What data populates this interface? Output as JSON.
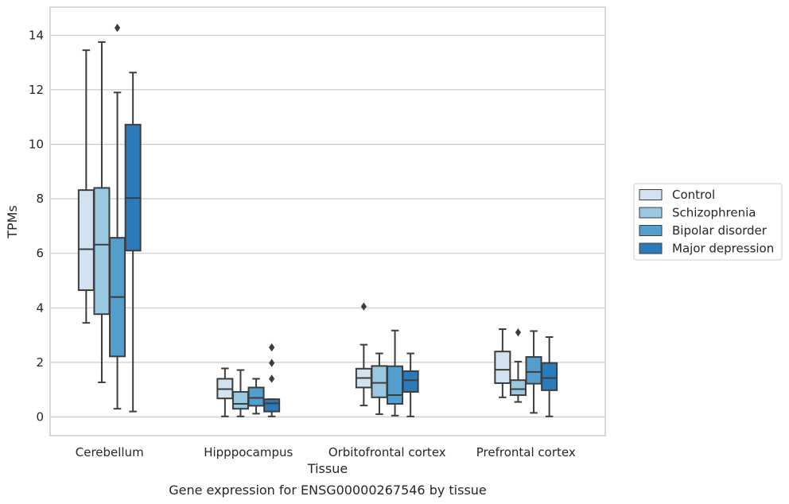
{
  "chart_data": {
    "type": "boxplot",
    "xlabel": "Tissue",
    "ylabel": "TPMs",
    "caption": "Gene expression for ENSG00000267546 by tissue",
    "ylim": [
      -0.7,
      15
    ],
    "yticks": [
      "0",
      "2",
      "4",
      "6",
      "8",
      "10",
      "12",
      "14"
    ],
    "grid": "horizontal",
    "legend_position": "right",
    "categories": [
      "Cerebellum",
      "Hipppocampus",
      "Orbitofrontal cortex",
      "Prefrontal cortex"
    ],
    "series": [
      {
        "name": "Control",
        "color": "#d2e2f1",
        "boxes": [
          {
            "whislo": 3.45,
            "q1": 4.65,
            "med": 6.15,
            "q3": 8.32,
            "whishi": 13.45,
            "fliers": []
          },
          {
            "whislo": 0.02,
            "q1": 0.68,
            "med": 1.02,
            "q3": 1.4,
            "whishi": 1.78,
            "fliers": []
          },
          {
            "whislo": 0.42,
            "q1": 1.08,
            "med": 1.43,
            "q3": 1.77,
            "whishi": 2.65,
            "fliers": [
              4.05
            ]
          },
          {
            "whislo": 0.72,
            "q1": 1.24,
            "med": 1.73,
            "q3": 2.4,
            "whishi": 3.22,
            "fliers": []
          }
        ]
      },
      {
        "name": "Schizophrenia",
        "color": "#9ac8e0",
        "boxes": [
          {
            "whislo": 1.27,
            "q1": 3.77,
            "med": 6.32,
            "q3": 8.4,
            "whishi": 13.75,
            "fliers": []
          },
          {
            "whislo": 0.02,
            "q1": 0.3,
            "med": 0.48,
            "q3": 0.92,
            "whishi": 1.72,
            "fliers": []
          },
          {
            "whislo": 0.1,
            "q1": 0.72,
            "med": 1.25,
            "q3": 1.87,
            "whishi": 2.33,
            "fliers": []
          },
          {
            "whislo": 0.55,
            "q1": 0.8,
            "med": 1.02,
            "q3": 1.35,
            "whishi": 2.03,
            "fliers": [
              3.1
            ]
          }
        ]
      },
      {
        "name": "Bipolar disorder",
        "color": "#539ecd",
        "boxes": [
          {
            "whislo": 0.3,
            "q1": 2.22,
            "med": 4.4,
            "q3": 6.57,
            "whishi": 11.9,
            "fliers": [
              14.27
            ]
          },
          {
            "whislo": 0.12,
            "q1": 0.41,
            "med": 0.7,
            "q3": 1.08,
            "whishi": 1.4,
            "fliers": []
          },
          {
            "whislo": 0.05,
            "q1": 0.48,
            "med": 0.8,
            "q3": 1.86,
            "whishi": 3.17,
            "fliers": []
          },
          {
            "whislo": 0.15,
            "q1": 1.22,
            "med": 1.65,
            "q3": 2.2,
            "whishi": 3.15,
            "fliers": []
          }
        ]
      },
      {
        "name": "Major depression",
        "color": "#2b7bba",
        "boxes": [
          {
            "whislo": 0.2,
            "q1": 6.1,
            "med": 8.03,
            "q3": 10.72,
            "whishi": 12.63,
            "fliers": []
          },
          {
            "whislo": 0.02,
            "q1": 0.2,
            "med": 0.5,
            "q3": 0.65,
            "whishi": 0.65,
            "fliers": [
              1.4,
              1.98,
              2.55
            ]
          },
          {
            "whislo": 0.02,
            "q1": 0.92,
            "med": 1.35,
            "q3": 1.68,
            "whishi": 2.33,
            "fliers": []
          },
          {
            "whislo": 0.02,
            "q1": 0.98,
            "med": 1.43,
            "q3": 1.98,
            "whishi": 2.93,
            "fliers": []
          }
        ]
      }
    ]
  }
}
